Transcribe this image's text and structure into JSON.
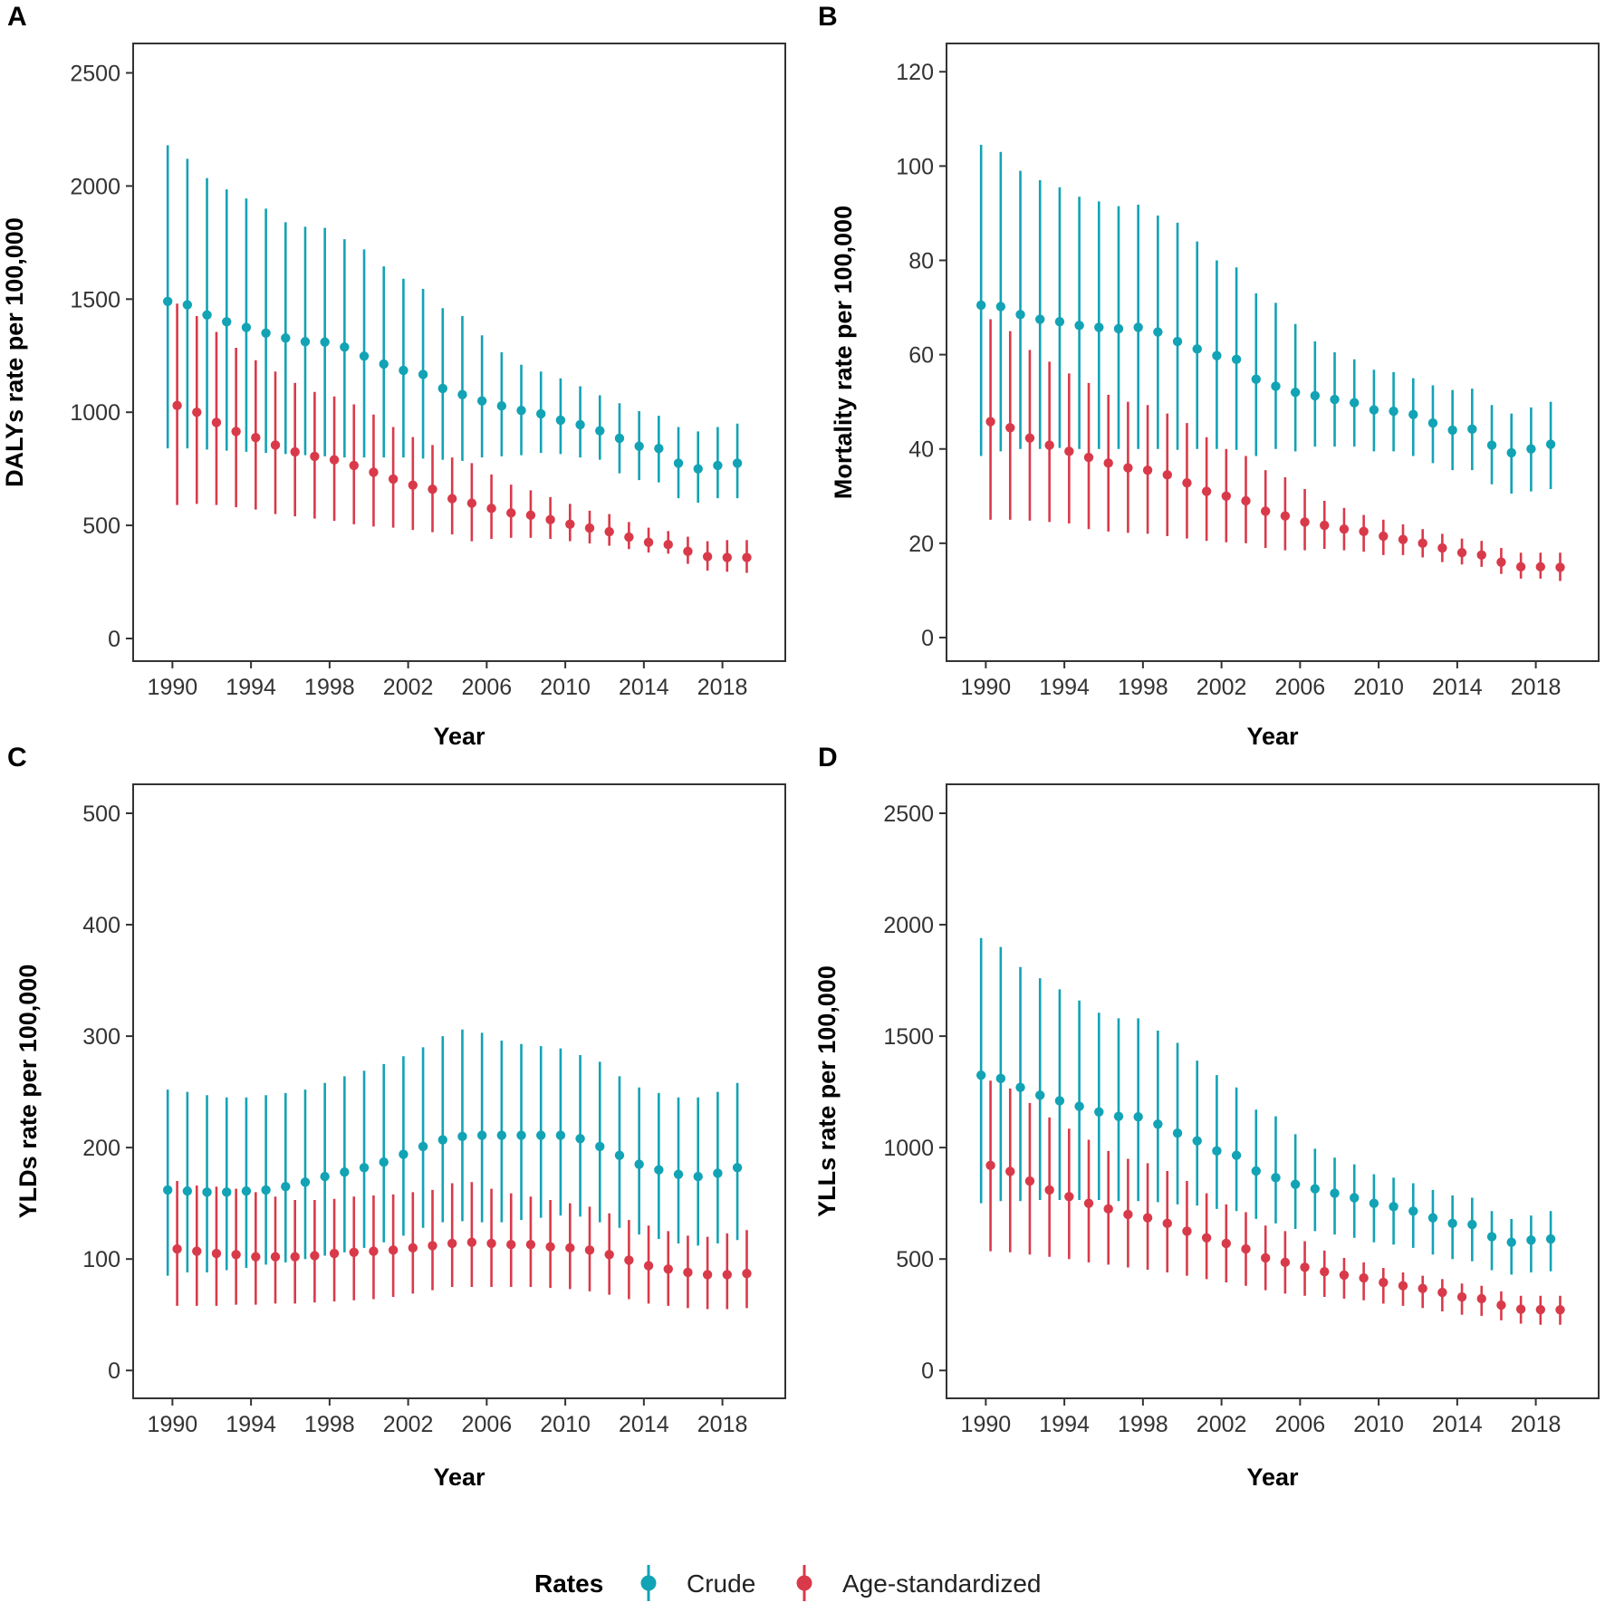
{
  "colors": {
    "crude": "#12a3b5",
    "age_standardized": "#d93a4a",
    "frame": "#333333"
  },
  "legend": {
    "title": "Rates",
    "items": [
      "Crude",
      "Age-standardized"
    ]
  },
  "chart_data": [
    {
      "panel": "A",
      "type": "scatter",
      "xlabel": "Year",
      "ylabel": "DALYs rate per 100,000",
      "ylim": [
        -100,
        2630
      ],
      "xlim": [
        1988.0,
        2021.2
      ],
      "yticks": [
        0,
        500,
        1000,
        1500,
        2000,
        2500
      ],
      "xticks": [
        1990,
        1994,
        1998,
        2002,
        2006,
        2010,
        2014,
        2018
      ],
      "years": [
        1990,
        1991,
        1992,
        1993,
        1994,
        1995,
        1996,
        1997,
        1998,
        1999,
        2000,
        2001,
        2002,
        2003,
        2004,
        2005,
        2006,
        2007,
        2008,
        2009,
        2010,
        2011,
        2012,
        2013,
        2014,
        2015,
        2016,
        2017,
        2018,
        2019
      ],
      "series": [
        {
          "name": "Crude",
          "values": [
            1490,
            1475,
            1430,
            1400,
            1375,
            1350,
            1328,
            1312,
            1310,
            1288,
            1248,
            1213,
            1185,
            1167,
            1105,
            1078,
            1050,
            1028,
            1008,
            993,
            965,
            945,
            918,
            885,
            850,
            840,
            775,
            750,
            765,
            775
          ],
          "lower": [
            840,
            840,
            835,
            830,
            825,
            820,
            815,
            810,
            805,
            800,
            800,
            800,
            800,
            795,
            790,
            785,
            800,
            805,
            810,
            820,
            815,
            800,
            790,
            730,
            700,
            690,
            620,
            600,
            620,
            620
          ],
          "upper": [
            2180,
            2120,
            2035,
            1985,
            1945,
            1900,
            1840,
            1820,
            1815,
            1765,
            1720,
            1645,
            1590,
            1545,
            1460,
            1425,
            1340,
            1265,
            1210,
            1180,
            1150,
            1115,
            1075,
            1040,
            1005,
            985,
            935,
            915,
            935,
            950
          ]
        },
        {
          "name": "Age-standardized",
          "values": [
            1030,
            1000,
            955,
            915,
            888,
            855,
            825,
            805,
            790,
            765,
            735,
            705,
            678,
            660,
            618,
            598,
            575,
            555,
            545,
            525,
            505,
            488,
            472,
            448,
            425,
            415,
            385,
            362,
            358,
            358
          ],
          "lower": [
            590,
            595,
            590,
            580,
            570,
            550,
            540,
            530,
            520,
            505,
            495,
            490,
            480,
            470,
            460,
            430,
            440,
            445,
            445,
            440,
            430,
            420,
            410,
            395,
            380,
            375,
            330,
            300,
            295,
            290
          ],
          "upper": [
            1480,
            1425,
            1355,
            1285,
            1230,
            1180,
            1130,
            1090,
            1070,
            1035,
            990,
            935,
            890,
            855,
            800,
            775,
            725,
            680,
            655,
            625,
            595,
            565,
            550,
            515,
            490,
            475,
            450,
            430,
            435,
            435
          ]
        }
      ]
    },
    {
      "panel": "B",
      "type": "scatter",
      "xlabel": "Year",
      "ylabel": "Mortality rate per 100,000",
      "ylim": [
        -5,
        126
      ],
      "xlim": [
        1988.0,
        2021.2
      ],
      "yticks": [
        0,
        20,
        40,
        60,
        80,
        100,
        120
      ],
      "xticks": [
        1990,
        1994,
        1998,
        2002,
        2006,
        2010,
        2014,
        2018
      ],
      "years": [
        1990,
        1991,
        1992,
        1993,
        1994,
        1995,
        1996,
        1997,
        1998,
        1999,
        2000,
        2001,
        2002,
        2003,
        2004,
        2005,
        2006,
        2007,
        2008,
        2009,
        2010,
        2011,
        2012,
        2013,
        2014,
        2015,
        2016,
        2017,
        2018,
        2019
      ],
      "series": [
        {
          "name": "Crude",
          "values": [
            70.5,
            70.2,
            68.5,
            67.5,
            67.0,
            66.2,
            65.8,
            65.5,
            65.8,
            64.8,
            62.8,
            61.2,
            59.8,
            59.0,
            54.8,
            53.3,
            52.0,
            51.3,
            50.5,
            49.8,
            48.3,
            48.0,
            47.3,
            45.5,
            44.0,
            44.2,
            40.8,
            39.2,
            40.0,
            41.0
          ],
          "lower": [
            38.5,
            39.5,
            40.0,
            40.0,
            40.2,
            40.0,
            40.0,
            40.0,
            40.0,
            40.0,
            39.8,
            40.0,
            40.0,
            39.8,
            38.5,
            40.0,
            39.5,
            40.5,
            40.5,
            40.5,
            39.5,
            39.5,
            38.5,
            37.0,
            35.5,
            35.5,
            32.5,
            30.5,
            31.0,
            31.5
          ],
          "upper": [
            104.5,
            103.0,
            99.0,
            97.0,
            95.5,
            93.5,
            92.5,
            91.5,
            91.8,
            89.5,
            88.0,
            84.0,
            80.0,
            78.5,
            73.0,
            71.0,
            66.5,
            62.8,
            60.5,
            59.0,
            56.8,
            56.3,
            55.0,
            53.5,
            52.5,
            52.8,
            49.3,
            47.5,
            48.8,
            50.0
          ]
        },
        {
          "name": "Age-standardized",
          "values": [
            45.8,
            44.5,
            42.3,
            40.8,
            39.5,
            38.2,
            37.0,
            36.0,
            35.5,
            34.5,
            32.8,
            31.0,
            30.0,
            29.0,
            26.8,
            25.8,
            24.5,
            23.8,
            23.0,
            22.5,
            21.5,
            20.8,
            20.0,
            19.0,
            18.0,
            17.5,
            16.0,
            15.0,
            15.0,
            14.9
          ],
          "lower": [
            25.0,
            25.0,
            24.8,
            24.5,
            24.2,
            23.0,
            22.5,
            22.2,
            22.0,
            21.5,
            21.0,
            20.5,
            20.2,
            20.0,
            19.0,
            18.5,
            18.5,
            18.8,
            18.5,
            18.2,
            17.5,
            17.5,
            17.0,
            16.0,
            15.5,
            15.0,
            13.5,
            12.5,
            12.5,
            12.0
          ],
          "upper": [
            67.5,
            65.0,
            61.0,
            58.5,
            56.0,
            54.0,
            51.5,
            50.0,
            49.3,
            47.5,
            45.5,
            42.5,
            40.0,
            38.5,
            35.5,
            34.0,
            31.5,
            29.0,
            27.5,
            26.0,
            25.0,
            24.0,
            23.0,
            22.0,
            21.0,
            20.5,
            19.0,
            18.0,
            18.0,
            18.0
          ]
        }
      ]
    },
    {
      "panel": "C",
      "type": "scatter",
      "xlabel": "Year",
      "ylabel": "YLDs rate per 100,000",
      "ylim": [
        -25,
        526
      ],
      "xlim": [
        1988.0,
        2021.2
      ],
      "yticks": [
        0,
        100,
        200,
        300,
        400,
        500
      ],
      "xticks": [
        1990,
        1994,
        1998,
        2002,
        2006,
        2010,
        2014,
        2018
      ],
      "years": [
        1990,
        1991,
        1992,
        1993,
        1994,
        1995,
        1996,
        1997,
        1998,
        1999,
        2000,
        2001,
        2002,
        2003,
        2004,
        2005,
        2006,
        2007,
        2008,
        2009,
        2010,
        2011,
        2012,
        2013,
        2014,
        2015,
        2016,
        2017,
        2018,
        2019
      ],
      "series": [
        {
          "name": "Crude",
          "values": [
            162,
            161,
            160,
            160,
            161,
            162,
            165,
            169,
            174,
            178,
            182,
            187,
            194,
            201,
            207,
            210,
            211,
            211,
            211,
            211,
            211,
            208,
            201,
            193,
            185,
            180,
            176,
            174,
            177,
            182
          ],
          "lower": [
            85,
            88,
            88,
            90,
            92,
            95,
            97,
            100,
            103,
            106,
            110,
            115,
            121,
            128,
            133,
            134,
            133,
            133,
            135,
            137,
            139,
            138,
            133,
            128,
            122,
            118,
            114,
            112,
            114,
            117
          ],
          "upper": [
            252,
            250,
            247,
            245,
            245,
            247,
            249,
            252,
            258,
            264,
            269,
            275,
            282,
            290,
            300,
            306,
            303,
            296,
            293,
            291,
            289,
            283,
            277,
            264,
            254,
            249,
            245,
            245,
            250,
            258
          ]
        },
        {
          "name": "Age-standardized",
          "values": [
            109,
            107,
            105,
            104,
            102,
            102,
            102,
            103,
            105,
            106,
            107,
            108,
            110,
            112,
            114,
            115,
            114,
            113,
            113,
            111,
            110,
            108,
            104,
            99,
            94,
            91,
            88,
            86,
            86,
            87
          ],
          "lower": [
            58,
            58,
            58,
            59,
            59,
            60,
            60,
            61,
            62,
            63,
            64,
            66,
            69,
            72,
            75,
            75,
            75,
            75,
            75,
            74,
            73,
            71,
            68,
            64,
            60,
            58,
            56,
            55,
            55,
            56
          ],
          "upper": [
            170,
            166,
            165,
            163,
            160,
            156,
            153,
            153,
            154,
            156,
            157,
            158,
            160,
            162,
            168,
            169,
            163,
            159,
            156,
            153,
            150,
            147,
            141,
            135,
            130,
            125,
            121,
            120,
            123,
            126
          ]
        }
      ]
    },
    {
      "panel": "D",
      "type": "scatter",
      "xlabel": "Year",
      "ylabel": "YLLs rate per 100,000",
      "ylim": [
        -125,
        2630
      ],
      "xlim": [
        1988.0,
        2021.2
      ],
      "yticks": [
        0,
        500,
        1000,
        1500,
        2000,
        2500
      ],
      "xticks": [
        1990,
        1994,
        1998,
        2002,
        2006,
        2010,
        2014,
        2018
      ],
      "years": [
        1990,
        1991,
        1992,
        1993,
        1994,
        1995,
        1996,
        1997,
        1998,
        1999,
        2000,
        2001,
        2002,
        2003,
        2004,
        2005,
        2006,
        2007,
        2008,
        2009,
        2010,
        2011,
        2012,
        2013,
        2014,
        2015,
        2016,
        2017,
        2018,
        2019
      ],
      "series": [
        {
          "name": "Crude",
          "values": [
            1325,
            1310,
            1270,
            1235,
            1210,
            1185,
            1160,
            1140,
            1138,
            1105,
            1065,
            1030,
            985,
            965,
            895,
            865,
            835,
            815,
            795,
            775,
            750,
            735,
            715,
            685,
            660,
            655,
            600,
            575,
            585,
            590
          ],
          "lower": [
            750,
            760,
            760,
            765,
            765,
            765,
            765,
            760,
            760,
            755,
            745,
            740,
            725,
            715,
            680,
            660,
            635,
            625,
            610,
            595,
            575,
            565,
            550,
            520,
            500,
            490,
            450,
            430,
            440,
            445
          ],
          "upper": [
            1940,
            1900,
            1810,
            1760,
            1710,
            1660,
            1605,
            1580,
            1580,
            1525,
            1470,
            1390,
            1325,
            1270,
            1170,
            1140,
            1060,
            995,
            955,
            925,
            880,
            865,
            840,
            810,
            785,
            775,
            715,
            680,
            695,
            715
          ]
        },
        {
          "name": "Age-standardized",
          "values": [
            920,
            893,
            850,
            810,
            780,
            750,
            725,
            700,
            685,
            660,
            625,
            595,
            570,
            545,
            505,
            485,
            463,
            443,
            428,
            415,
            395,
            380,
            368,
            350,
            330,
            322,
            293,
            275,
            273,
            272
          ],
          "lower": [
            535,
            530,
            520,
            510,
            500,
            485,
            475,
            462,
            452,
            440,
            425,
            410,
            395,
            380,
            360,
            345,
            335,
            330,
            322,
            315,
            300,
            290,
            280,
            265,
            250,
            245,
            225,
            210,
            205,
            205
          ],
          "upper": [
            1300,
            1265,
            1200,
            1135,
            1085,
            1035,
            985,
            950,
            930,
            895,
            850,
            795,
            745,
            710,
            650,
            625,
            580,
            538,
            505,
            485,
            460,
            440,
            425,
            410,
            390,
            380,
            355,
            335,
            335,
            335
          ]
        }
      ]
    }
  ]
}
